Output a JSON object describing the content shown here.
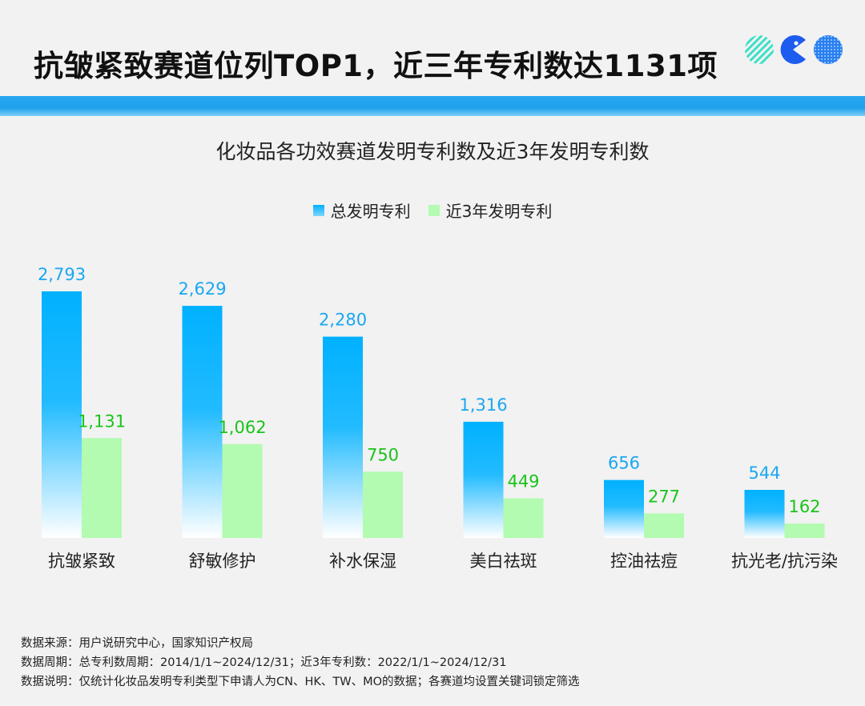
{
  "header": {
    "headline": "抗皱紧致赛道位列TOP1，近三年专利数达1131项"
  },
  "colors": {
    "band": "#1fa0ec",
    "total_bar_top": "#00b1ff",
    "total_label": "#1aa7f0",
    "recent_bar": "#b2fbb0",
    "recent_label": "#19c419"
  },
  "chart_data": {
    "type": "bar",
    "title": "化妆品各功效赛道发明专利数及近3年发明专利数",
    "categories": [
      "抗皱紧致",
      "舒敏修护",
      "补水保湿",
      "美白祛斑",
      "控油祛痘",
      "抗光老/抗污染"
    ],
    "series": [
      {
        "name": "总发明专利",
        "values": [
          2793,
          2629,
          2280,
          1316,
          656,
          544
        ],
        "labels": [
          "2,793",
          "2,629",
          "2,280",
          "1,316",
          "656",
          "544"
        ]
      },
      {
        "name": "近3年发明专利",
        "values": [
          1131,
          1062,
          750,
          449,
          277,
          162
        ],
        "labels": [
          "1,131",
          "1,062",
          "750",
          "449",
          "277",
          "162"
        ]
      }
    ],
    "ylim": [
      0,
      2793
    ],
    "grid": false,
    "legend": "top-center"
  },
  "notes": [
    "数据来源：用户说研究中心，国家知识产权局",
    "数据周期：总专利数周期：2014/1/1~2024/12/31；近3年专利数：2022/1/1~2024/12/31",
    "数据说明：仅统计化妆品发明专利类型下申请人为CN、HK、TW、MO的数据；各赛道均设置关键词锁定筛选"
  ]
}
